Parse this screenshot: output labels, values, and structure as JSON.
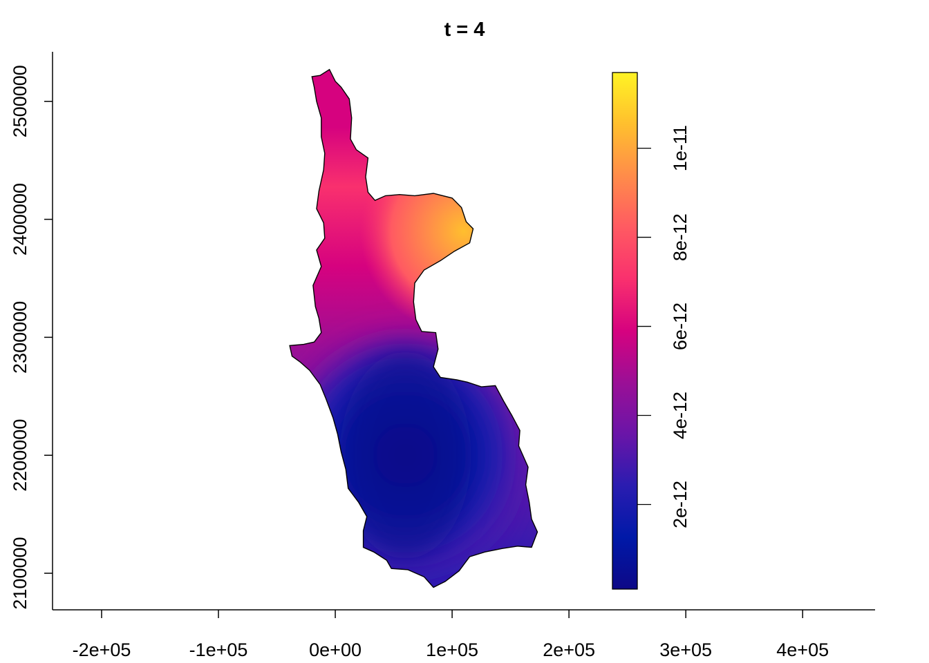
{
  "chart_data": {
    "type": "heatmap",
    "title": "t = 4",
    "xlabel": "",
    "ylabel": "",
    "xlim": [
      -242000,
      462000
    ],
    "ylim": [
      2069000,
      2542000
    ],
    "x_ticks": [
      -200000,
      -100000,
      0,
      100000,
      200000,
      300000,
      400000
    ],
    "x_tick_labels": [
      "-2e+05",
      "-1e+05",
      "0e+00",
      "1e+05",
      "2e+05",
      "3e+05",
      "4e+05"
    ],
    "y_ticks": [
      2100000,
      2200000,
      2300000,
      2400000,
      2500000
    ],
    "y_tick_labels": [
      "2100000",
      "2200000",
      "2300000",
      "2400000",
      "2500000"
    ],
    "legend": {
      "placement": "right",
      "range": [
        1e-13,
        1.17e-11
      ],
      "ticks": [
        2e-12,
        4e-12,
        6e-12,
        8e-12,
        1e-11
      ],
      "tick_labels": [
        "2e-12",
        "4e-12",
        "6e-12",
        "8e-12",
        "1e-11"
      ],
      "palette": [
        "#0d0887",
        "#0019a8",
        "#2a1cb0",
        "#6a15a8",
        "#9b0f96",
        "#d6027f",
        "#f9306e",
        "#ff5a62",
        "#ff8c4a",
        "#ffbf2e",
        "#fff324"
      ]
    },
    "field": {
      "low_center": [
        60000,
        2200000
      ],
      "high_center": [
        110000,
        2390000
      ],
      "top_value_region": [
        -5000,
        2510000
      ]
    },
    "boundary": [
      [
        -20000,
        2521000
      ],
      [
        -13000,
        2522000
      ],
      [
        -5000,
        2527000
      ],
      [
        0,
        2517000
      ],
      [
        5000,
        2512000
      ],
      [
        12000,
        2502000
      ],
      [
        14000,
        2486000
      ],
      [
        13000,
        2468000
      ],
      [
        18000,
        2459000
      ],
      [
        28000,
        2452000
      ],
      [
        26000,
        2436000
      ],
      [
        28000,
        2423000
      ],
      [
        34000,
        2416000
      ],
      [
        43000,
        2420000
      ],
      [
        55000,
        2421000
      ],
      [
        68000,
        2420000
      ],
      [
        84000,
        2422000
      ],
      [
        100000,
        2418000
      ],
      [
        108000,
        2410000
      ],
      [
        112000,
        2398000
      ],
      [
        118000,
        2392000
      ],
      [
        115000,
        2380000
      ],
      [
        102000,
        2373000
      ],
      [
        90000,
        2365000
      ],
      [
        76000,
        2357000
      ],
      [
        68000,
        2346000
      ],
      [
        67000,
        2330000
      ],
      [
        69000,
        2315000
      ],
      [
        74000,
        2305000
      ],
      [
        86000,
        2304000
      ],
      [
        88000,
        2290000
      ],
      [
        84000,
        2275000
      ],
      [
        90000,
        2266000
      ],
      [
        104000,
        2264000
      ],
      [
        113000,
        2262000
      ],
      [
        125000,
        2258000
      ],
      [
        137000,
        2259000
      ],
      [
        144000,
        2246000
      ],
      [
        151000,
        2234000
      ],
      [
        158000,
        2221000
      ],
      [
        157000,
        2208000
      ],
      [
        165000,
        2190000
      ],
      [
        163000,
        2175000
      ],
      [
        166000,
        2160000
      ],
      [
        168000,
        2146000
      ],
      [
        173000,
        2135000
      ],
      [
        168000,
        2122000
      ],
      [
        156000,
        2123000
      ],
      [
        143000,
        2121000
      ],
      [
        128000,
        2118000
      ],
      [
        115000,
        2114000
      ],
      [
        106000,
        2102000
      ],
      [
        94000,
        2093000
      ],
      [
        84000,
        2088000
      ],
      [
        76000,
        2097000
      ],
      [
        62000,
        2103000
      ],
      [
        48000,
        2104000
      ],
      [
        44000,
        2111000
      ],
      [
        33000,
        2118000
      ],
      [
        24000,
        2122000
      ],
      [
        24000,
        2136000
      ],
      [
        27000,
        2148000
      ],
      [
        20000,
        2160000
      ],
      [
        11000,
        2172000
      ],
      [
        9000,
        2188000
      ],
      [
        5000,
        2203000
      ],
      [
        2000,
        2218000
      ],
      [
        -2000,
        2232000
      ],
      [
        -8000,
        2248000
      ],
      [
        -13000,
        2260000
      ],
      [
        -22000,
        2272000
      ],
      [
        -30000,
        2279000
      ],
      [
        -37000,
        2284000
      ],
      [
        -39000,
        2293000
      ],
      [
        -27000,
        2294000
      ],
      [
        -18000,
        2296000
      ],
      [
        -12000,
        2304000
      ],
      [
        -14000,
        2316000
      ],
      [
        -17000,
        2326000
      ],
      [
        -19000,
        2344000
      ],
      [
        -12000,
        2360000
      ],
      [
        -16000,
        2374000
      ],
      [
        -9000,
        2384000
      ],
      [
        -10000,
        2397000
      ],
      [
        -16000,
        2409000
      ],
      [
        -14000,
        2424000
      ],
      [
        -10000,
        2442000
      ],
      [
        -9000,
        2456000
      ],
      [
        -12000,
        2470000
      ],
      [
        -12000,
        2486000
      ],
      [
        -16000,
        2500000
      ],
      [
        -18000,
        2512000
      ]
    ]
  }
}
